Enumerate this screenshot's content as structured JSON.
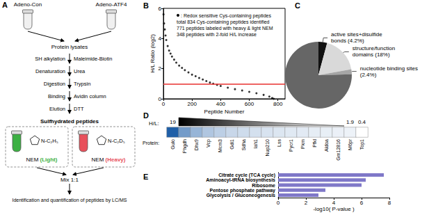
{
  "diagram": {
    "panel": "A",
    "samples": [
      "Adeno-Con",
      "Adeno-ATF4"
    ],
    "start": "Protein lysates",
    "steps": [
      {
        "step": "SH alkylation",
        "reagent": "Maleimide-Biotin"
      },
      {
        "step": "Denaturation",
        "reagent": "Urea"
      },
      {
        "step": "Digestion",
        "reagent": "Trypsin"
      },
      {
        "step": "Binding",
        "reagent": "Avidin column"
      },
      {
        "step": "Elution",
        "reagent": "DTT"
      }
    ],
    "product": "Sulfhydrated peptides",
    "labeling": [
      {
        "reagent": "NEM",
        "group": "N-C₂H₅",
        "tag": "(Light)",
        "color": "#3cb043"
      },
      {
        "reagent": "NEM",
        "group": "N-C₂D₅",
        "tag": "(Heavy)",
        "color": "#e8505b"
      }
    ],
    "mix": "Mix 1:1",
    "analysis": "Identification and quantification of peptides by LC/MS"
  },
  "chart_data": [
    {
      "panel": "B",
      "type": "scatter",
      "x": [
        1,
        5,
        10,
        15,
        20,
        30,
        40,
        50,
        60,
        75,
        90,
        110,
        130,
        150,
        175,
        200,
        225,
        250,
        275,
        300,
        325,
        348,
        375,
        400,
        450,
        500,
        550,
        600,
        650,
        700,
        740,
        760,
        771
      ],
      "values": [
        5.6,
        5.0,
        4.6,
        4.2,
        3.9,
        3.5,
        3.2,
        3.0,
        2.8,
        2.6,
        2.4,
        2.2,
        2.05,
        1.9,
        1.75,
        1.6,
        1.5,
        1.38,
        1.28,
        1.18,
        1.08,
        1.0,
        0.92,
        0.85,
        0.74,
        0.64,
        0.55,
        0.46,
        0.37,
        0.26,
        0.15,
        0.05,
        0.0
      ],
      "xlabel": "Peptide Number",
      "ylabel": "H/L Ratio (log2)",
      "xlim": [
        0,
        850
      ],
      "xticks": [
        0,
        200,
        400,
        600,
        800
      ],
      "ylim": [
        0,
        6
      ],
      "yticks": [
        0,
        2,
        4,
        6
      ],
      "reference_line": 1,
      "color": "#000000",
      "marker": "circle",
      "grid": false,
      "legend_label": ": Redox sensitive Cys-containing peptides",
      "annotations": [
        "total 834 Cys-containing peptides identified",
        "771 peptides labeled with heavy & light NEM",
        "348 peptides with 2-fold H/L increase"
      ]
    },
    {
      "panel": "C",
      "type": "pie",
      "categories": [
        "active sites+disulfide bonds (4.2%)",
        "structure/function domains (18%)",
        "nucleotide binding sites (2.4%)",
        null
      ],
      "values": [
        4.2,
        18,
        2.4,
        75.4
      ],
      "colors": [
        "#111111",
        "#d9d9d9",
        "#a6a6a6",
        "#666666"
      ]
    },
    {
      "panel": "D",
      "type": "heatmap",
      "categories": [
        "Gulo",
        "Phgdh",
        "Dhx9",
        "Vcp",
        "Mcm3",
        "Gdi1",
        "Sdha",
        "Iah1",
        "Nup210",
        "Lss",
        "Pycr1",
        "Pkm",
        "Pfkl",
        "Aldoa",
        "Gm12816",
        "M6pr",
        "Top1"
      ],
      "values": [
        19,
        12,
        9,
        7,
        6,
        5,
        4.5,
        4,
        3.6,
        3.3,
        3,
        2.8,
        2.5,
        2.3,
        2.1,
        1.9,
        0.4
      ],
      "value_labels": [
        "19",
        null,
        null,
        null,
        null,
        null,
        null,
        null,
        null,
        null,
        null,
        null,
        null,
        null,
        null,
        "1.9",
        "0.4"
      ],
      "value_title": "H/L:",
      "category_title": "Protein:",
      "color": "#1f5fa8"
    },
    {
      "panel": "E",
      "type": "bar",
      "orientation": "horizontal",
      "categories": [
        "Citrate cycle (TCA cycle)",
        "Aminoacyl-tRNA biosynthesis",
        "Ribosome",
        "Pentose phosphate pathway",
        "Glycolysis / Gluconeogenesis"
      ],
      "values": [
        7.6,
        6.3,
        6.0,
        3.4,
        2.9
      ],
      "xlabel": "-log10( P-value )",
      "xlim": [
        0,
        8
      ],
      "xticks": [
        0,
        2,
        4,
        6,
        8
      ],
      "color": "#7f78c8",
      "grid": false
    }
  ]
}
